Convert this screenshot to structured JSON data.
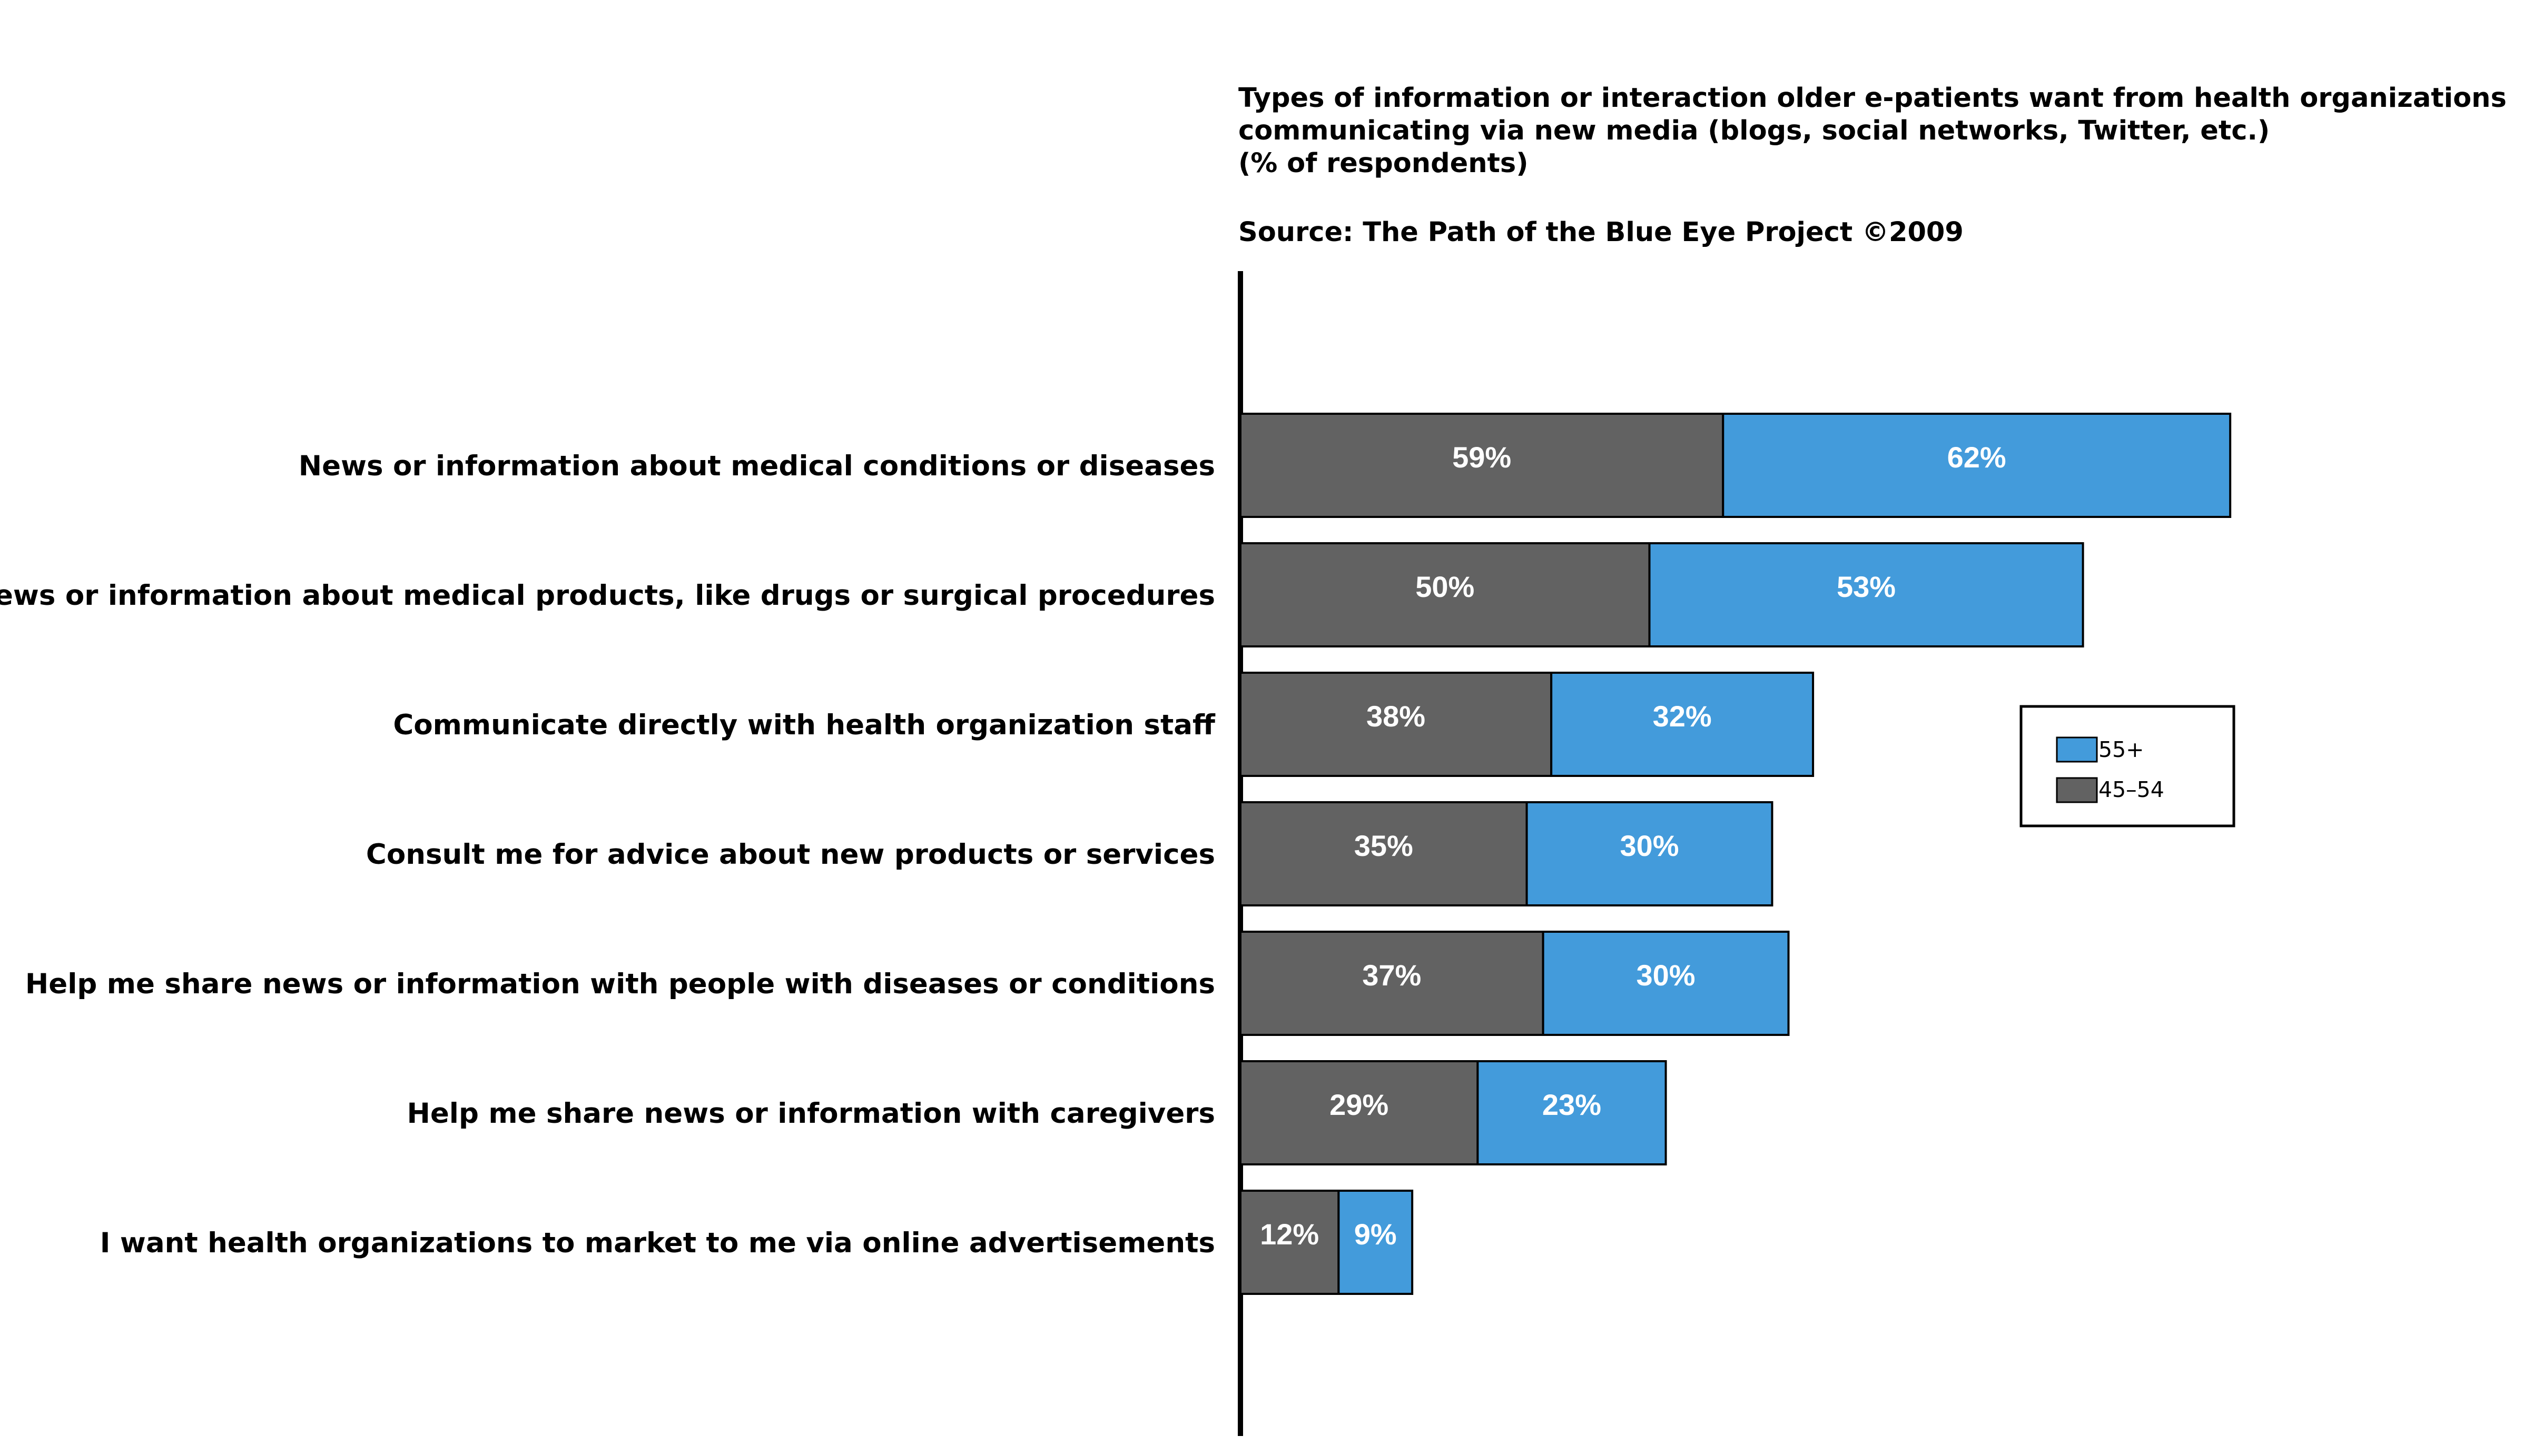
{
  "chart_data": {
    "type": "bar",
    "orientation": "horizontal",
    "stacked": true,
    "title": [
      "Types of information or interaction older e-patients want from health organizations",
      "communicating via new media (blogs, social networks, Twitter, etc.)",
      "(% of respondents)"
    ],
    "source": "Source: The Path of the Blue Eye Project ©2009",
    "categories": [
      "News or information about medical conditions or diseases",
      "News or information about medical products, like drugs or surgical procedures",
      "Communicate directly with health organization staff",
      "Consult me for advice about new products or services",
      "Help me share news or information with people with diseases or conditions",
      "Help me share news or information with caregivers",
      "I want health organizations to market to me via online advertisements"
    ],
    "series": [
      {
        "name": "45-54",
        "values": [
          59,
          50,
          38,
          35,
          37,
          29,
          12
        ],
        "labels": [
          "59%",
          "50%",
          "38%",
          "35%",
          "37%",
          "29%",
          "12%"
        ],
        "color": "#626262"
      },
      {
        "name": "55+",
        "values": [
          62,
          53,
          32,
          30,
          30,
          23,
          9
        ],
        "labels": [
          "62%",
          "53%",
          "32%",
          "30%",
          "30%",
          "23%",
          "9%"
        ],
        "color": "#439bdb"
      }
    ],
    "legend": {
      "position": "right",
      "entries": [
        "55+",
        "45–54"
      ]
    },
    "xlabel": "",
    "ylabel": "",
    "grid": false
  }
}
